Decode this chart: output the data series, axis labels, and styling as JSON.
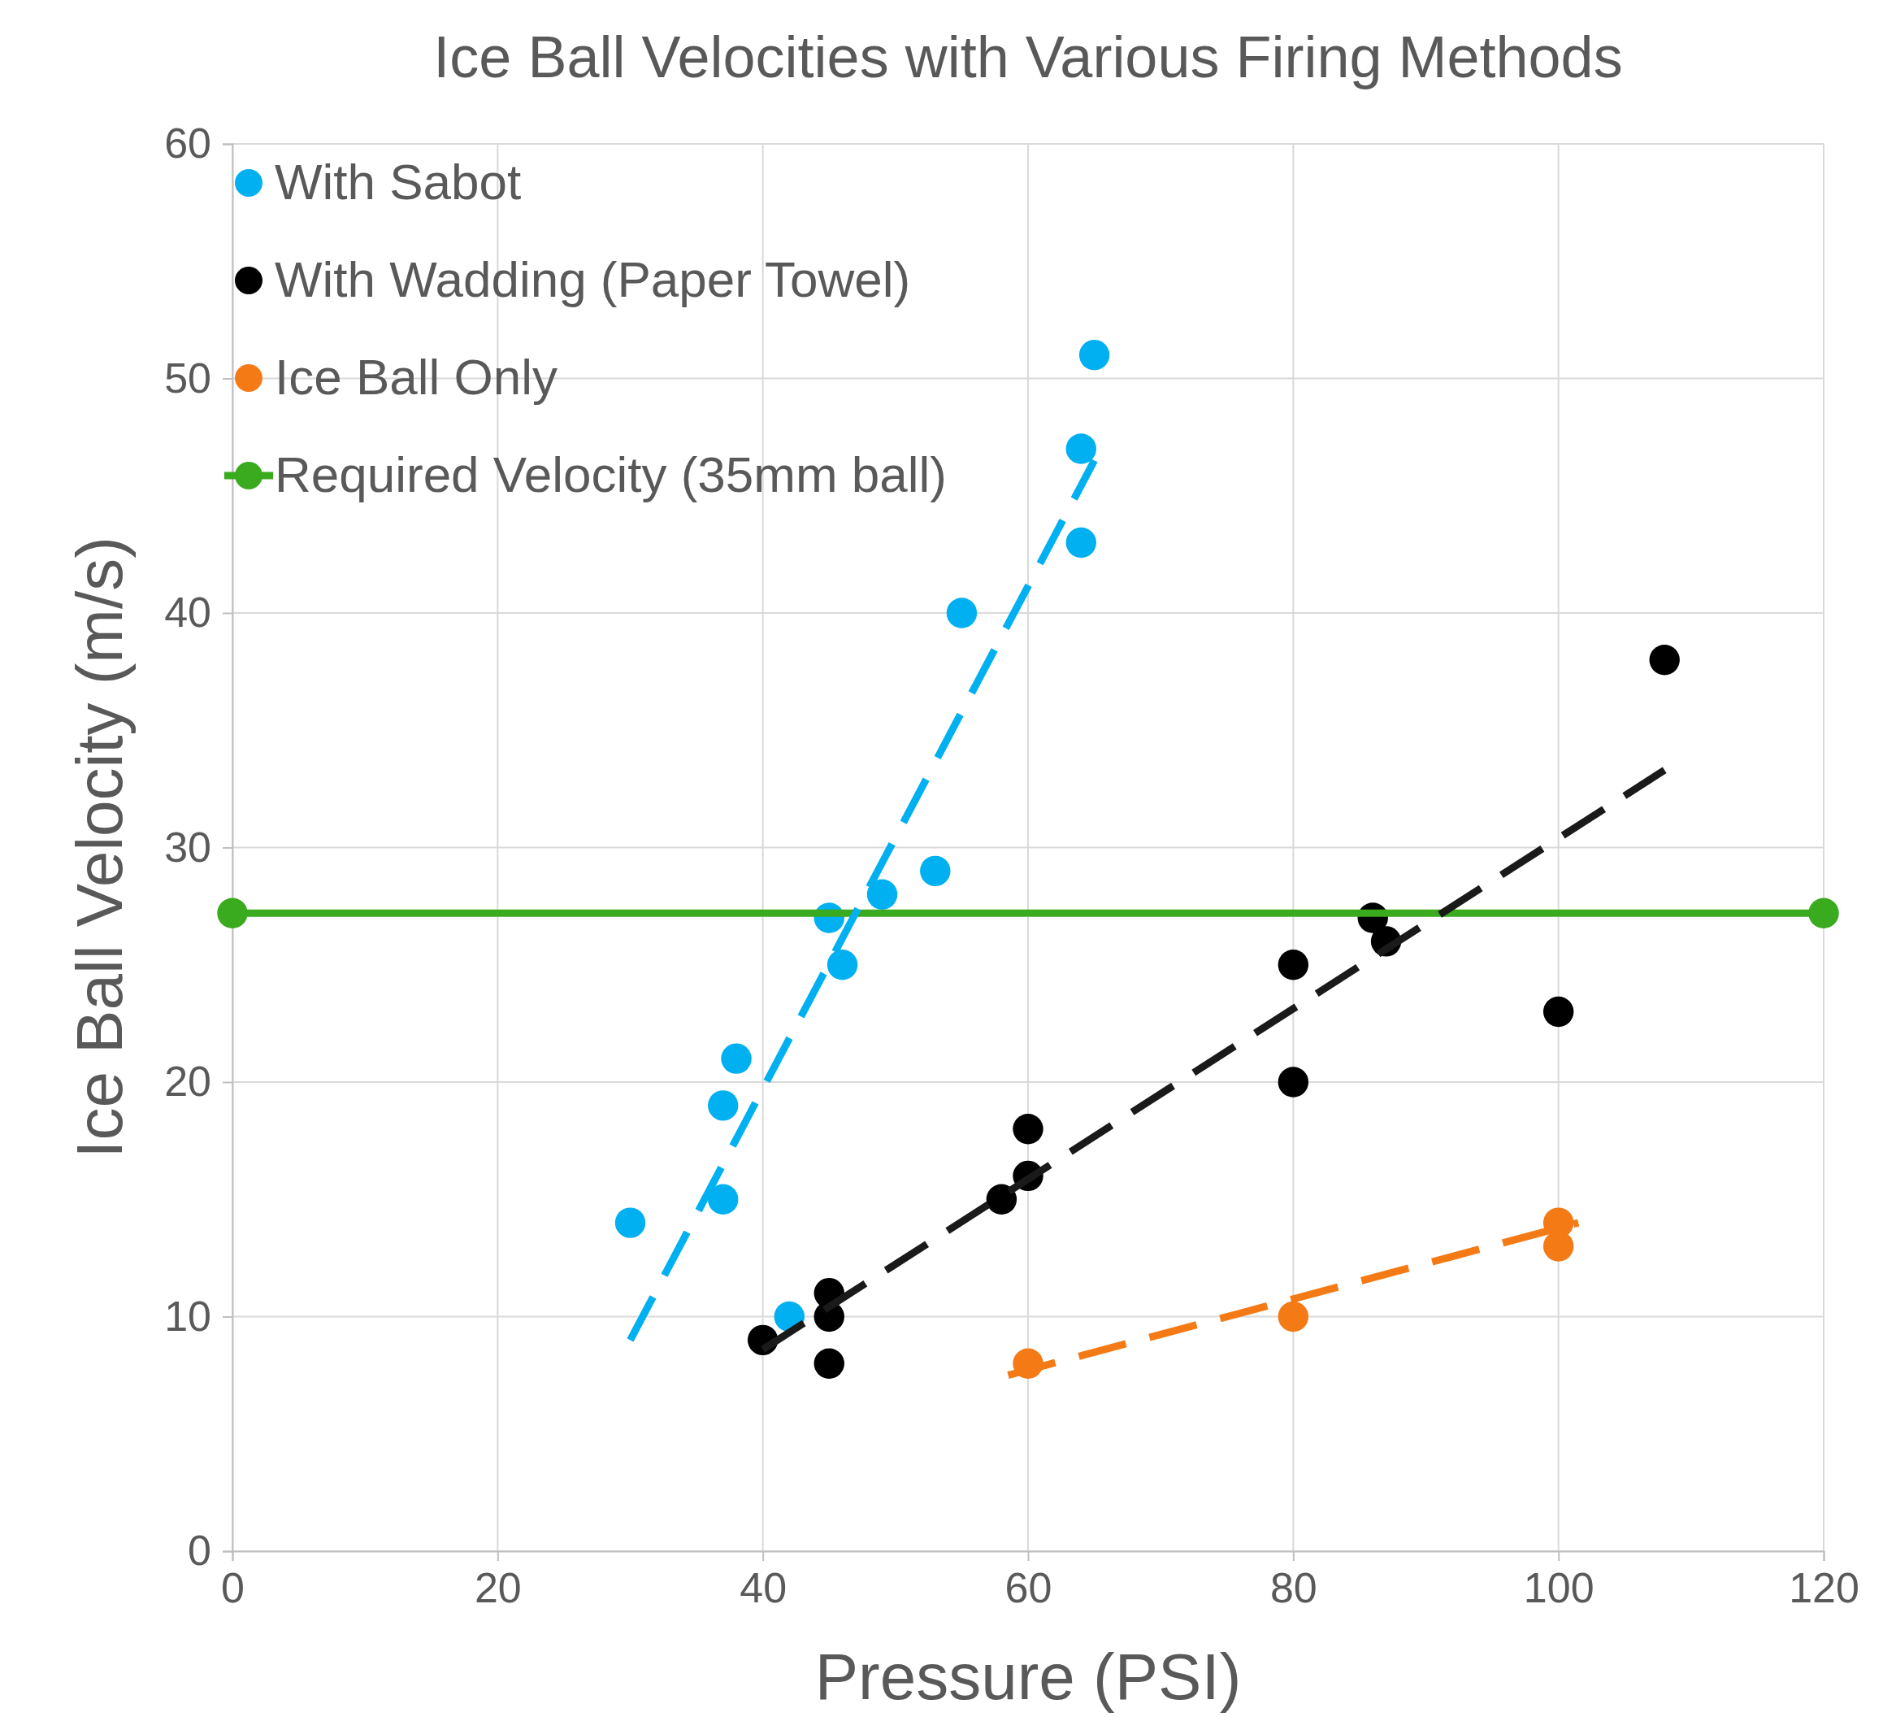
{
  "chart_data": {
    "type": "scatter",
    "title": "Ice Ball Velocities with Various Firing Methods",
    "xlabel": "Pressure (PSI)",
    "ylabel": "Ice Ball Velocity (m/s)",
    "xlim": [
      0,
      120
    ],
    "xticks": [
      0,
      20,
      40,
      60,
      80,
      100,
      120
    ],
    "ylim": [
      0,
      60
    ],
    "yticks": [
      0,
      10,
      20,
      30,
      40,
      50,
      60
    ],
    "grid": true,
    "legend": "top left",
    "marker": "circle",
    "series": [
      {
        "name": "With Sabot",
        "color": "#00b0f0",
        "x": [
          30,
          37,
          37,
          38,
          42,
          45,
          46,
          49,
          53,
          55,
          64,
          64,
          65
        ],
        "values": [
          14,
          19,
          15,
          21,
          10,
          27,
          25,
          28,
          29,
          40,
          47,
          43,
          51
        ]
      },
      {
        "name": "With Wadding (Paper Towel)",
        "color": "#000000",
        "x": [
          40,
          45,
          45,
          45,
          58,
          60,
          60,
          80,
          80,
          86,
          87,
          100,
          108
        ],
        "values": [
          9,
          11,
          10,
          8,
          15,
          18,
          16,
          25,
          20,
          27,
          26,
          23,
          38
        ]
      },
      {
        "name": "Ice Ball Only",
        "color": "#f47a16",
        "x": [
          60,
          80,
          100,
          100
        ],
        "values": [
          8,
          10,
          14,
          13
        ]
      },
      {
        "name": "Required Velocity (35mm ball)",
        "type": "line",
        "color": "#3aaa1e",
        "x": [
          0,
          120
        ],
        "values": [
          27.2,
          27.2
        ]
      },
      {
        "type": "line",
        "color": "#00b0f0",
        "line_style": "dashed",
        "marker": "none",
        "x": [
          30,
          65
        ],
        "values": [
          9,
          46.5
        ]
      },
      {
        "type": "line",
        "color": "#1a1a1a",
        "line_style": "dashed",
        "marker": "none",
        "x": [
          40,
          108
        ],
        "values": [
          8.6,
          33.3
        ]
      },
      {
        "type": "line",
        "color": "#f47a16",
        "line_style": "dashed",
        "marker": "none",
        "x": [
          58.5,
          101.5
        ],
        "values": [
          7.5,
          14
        ]
      }
    ]
  }
}
